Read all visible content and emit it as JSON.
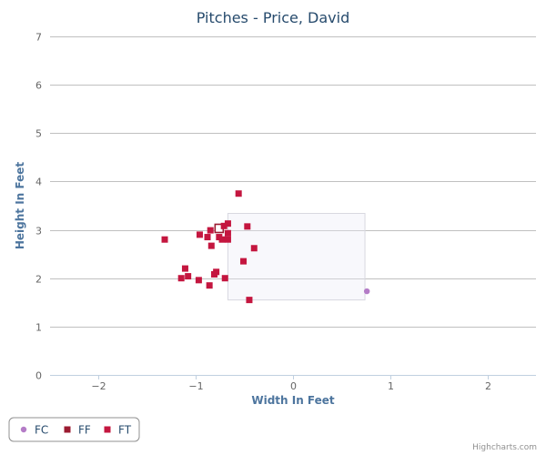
{
  "chart_data": {
    "type": "scatter",
    "title": "Pitches - Price, David",
    "xlabel": "Width In Feet",
    "ylabel": "Height In Feet",
    "xlim": [
      -2.5,
      2.5
    ],
    "ylim": [
      0,
      7
    ],
    "xticks": [
      -2,
      -1,
      0,
      1,
      2
    ],
    "yticks": [
      0,
      1,
      2,
      3,
      4,
      5,
      6,
      7
    ],
    "grid": "horizontal",
    "legend_position": "bottom-left",
    "strike_zone": {
      "x": [
        -0.67,
        0.74
      ],
      "y": [
        1.55,
        3.34
      ]
    },
    "series": [
      {
        "name": "FC",
        "marker": "circle",
        "color": "#b47cc7",
        "points": [
          [
            0.76,
            1.73
          ]
        ]
      },
      {
        "name": "FF",
        "marker": "square",
        "color": "#9b1b30",
        "points": [
          [
            -0.76,
            3.03
          ]
        ]
      },
      {
        "name": "FT",
        "marker": "square",
        "color": "#c4163f",
        "points": [
          [
            -0.56,
            3.75
          ],
          [
            -0.67,
            3.13
          ],
          [
            -0.47,
            3.07
          ],
          [
            -0.71,
            3.08
          ],
          [
            -0.85,
            2.99
          ],
          [
            -0.96,
            2.9
          ],
          [
            -0.67,
            2.93
          ],
          [
            -0.88,
            2.85
          ],
          [
            -0.76,
            2.85
          ],
          [
            -0.73,
            2.8
          ],
          [
            -0.67,
            2.8
          ],
          [
            -0.84,
            2.67
          ],
          [
            -0.4,
            2.62
          ],
          [
            -1.32,
            2.8
          ],
          [
            -0.51,
            2.35
          ],
          [
            -1.11,
            2.2
          ],
          [
            -0.79,
            2.13
          ],
          [
            -0.81,
            2.08
          ],
          [
            -1.08,
            2.04
          ],
          [
            -1.15,
            2.0
          ],
          [
            -0.7,
            2.0
          ],
          [
            -0.97,
            1.96
          ],
          [
            -0.86,
            1.85
          ],
          [
            -0.45,
            1.55
          ]
        ]
      }
    ]
  },
  "credits": "Highcharts.com"
}
